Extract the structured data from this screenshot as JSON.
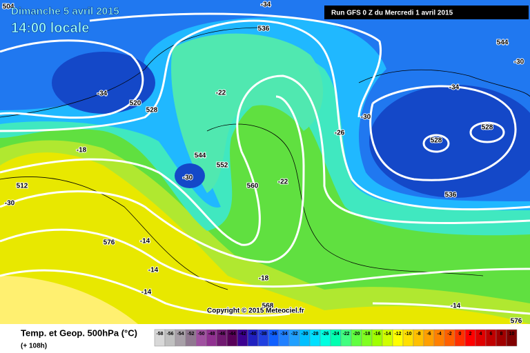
{
  "header": {
    "date": "Dimanche 5 avril 2015",
    "time": "14:00 locale",
    "run": "Run GFS 0 Z du Mercredi 1 avril 2015"
  },
  "copyright": "Copyright © 2015 Meteociel.fr",
  "footer": {
    "title": "Temp. et Geop. 500hPa (°C)",
    "lead": "(+ 108h)"
  },
  "map": {
    "labels": [
      504,
      -34,
      536,
      544,
      -30,
      -34,
      520,
      528,
      -22,
      -34,
      -26,
      -30,
      528,
      528,
      544,
      552,
      -30,
      -22,
      560,
      536,
      512,
      -30,
      -18,
      576,
      -14,
      -14,
      -14,
      -18,
      568,
      -14,
      576
    ]
  },
  "legend": {
    "values": [
      -58,
      -56,
      -54,
      -52,
      -50,
      -48,
      -46,
      -44,
      -42,
      -40,
      -38,
      -36,
      -34,
      -32,
      -30,
      -28,
      -26,
      -24,
      -22,
      -20,
      -18,
      -16,
      -14,
      -12,
      -10,
      -8,
      -6,
      -4,
      -2,
      0,
      2,
      4,
      6,
      8,
      10
    ],
    "colors": [
      "#d8d8d8",
      "#c0c0c0",
      "#a8a0a8",
      "#907890",
      "#a050a0",
      "#903090",
      "#701870",
      "#580058",
      "#3c0090",
      "#2020c0",
      "#2040e0",
      "#1060ff",
      "#2080ff",
      "#20a0ff",
      "#00c0ff",
      "#00e0ff",
      "#00ffe0",
      "#00ffb0",
      "#40ff80",
      "#60ff40",
      "#80ff20",
      "#a0ff00",
      "#d0ff00",
      "#ffff00",
      "#ffe000",
      "#ffc000",
      "#ffa000",
      "#ff8000",
      "#ff6000",
      "#ff3000",
      "#ff0000",
      "#e00000",
      "#c00000",
      "#a00000",
      "#800000"
    ]
  }
}
